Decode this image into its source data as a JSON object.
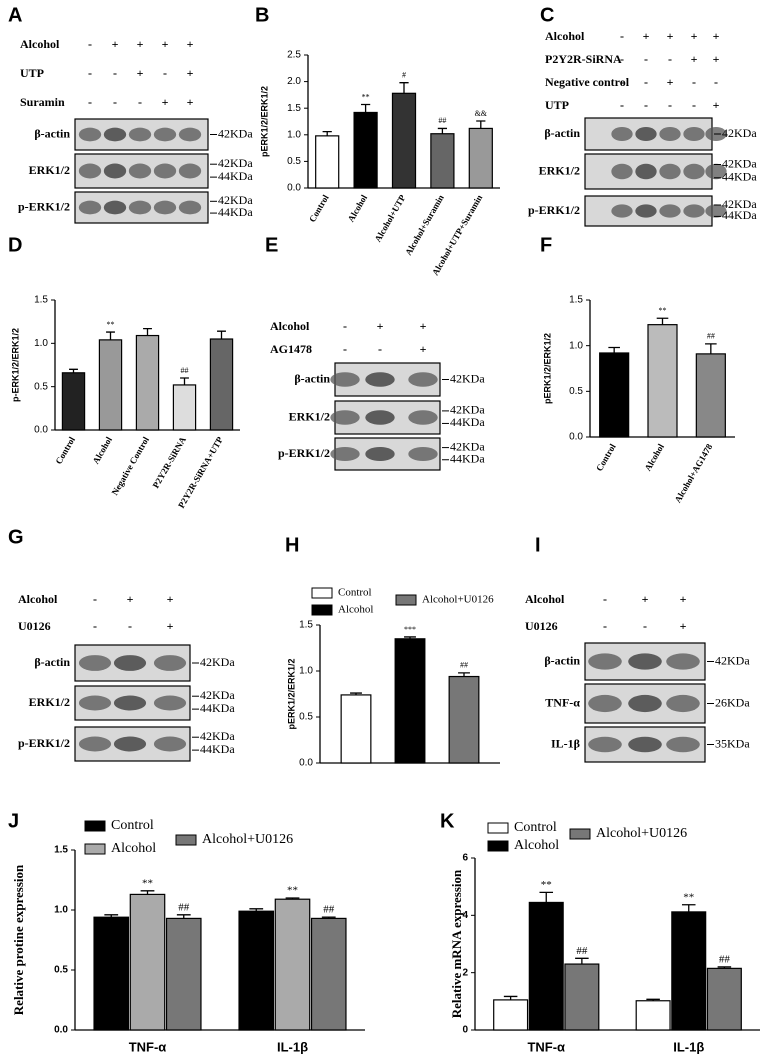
{
  "chart_data": [
    {
      "type": "bar",
      "panel": "B",
      "ylabel": "pERK1/2/ERK1/2",
      "categories": [
        "Control",
        "Alcohol",
        "Alcohol+UTP",
        "Alcohol+Suramin",
        "Alcohol+UTP+Suramin"
      ],
      "values": [
        0.98,
        1.42,
        1.78,
        1.02,
        1.12
      ],
      "errors": [
        0.08,
        0.15,
        0.2,
        0.1,
        0.14
      ],
      "annotations": [
        null,
        "**",
        "#",
        "##",
        "&&"
      ],
      "colors": [
        "#ffffff",
        "#000000",
        "#333333",
        "#666666",
        "#999999"
      ],
      "ylim": [
        0,
        2.5
      ],
      "yticks": [
        {
          "value": 0,
          "label": "0.0"
        },
        0.5,
        {
          "value": 1,
          "label": "1.0"
        },
        1.5,
        {
          "value": 2,
          "label": "2.0"
        },
        2.5
      ]
    },
    {
      "type": "bar",
      "panel": "D",
      "ylabel": "p-ERK1/2/ERK1/2",
      "categories": [
        "Control",
        "Alcohol",
        "Negative Control",
        "P2Y2R-SiRNA",
        "P2Y2R-SiRNA+UTP"
      ],
      "values": [
        0.66,
        1.04,
        1.09,
        0.52,
        1.05
      ],
      "errors": [
        0.04,
        0.09,
        0.08,
        0.08,
        0.09
      ],
      "annotations": [
        null,
        "**",
        null,
        "##",
        null
      ],
      "colors": [
        "#222222",
        "#999999",
        "#aaaaaa",
        "#dddddd",
        "#666666"
      ],
      "ylim": [
        0,
        1.5
      ],
      "yticks": [
        {
          "value": 0,
          "label": "0.0"
        },
        0.5,
        {
          "value": 1,
          "label": "1.0"
        },
        1.5
      ]
    },
    {
      "type": "bar",
      "panel": "F",
      "ylabel": "pERK1/2/ERK1/2",
      "categories": [
        "Control",
        "Alcohol",
        "Alcohol+AG1478"
      ],
      "values": [
        0.92,
        1.23,
        0.91
      ],
      "errors": [
        0.06,
        0.07,
        0.11
      ],
      "annotations": [
        null,
        "**",
        "##"
      ],
      "colors": [
        "#000000",
        "#bbbbbb",
        "#888888"
      ],
      "ylim": [
        0,
        1.5
      ],
      "yticks": [
        {
          "value": 0,
          "label": "0.0"
        },
        0.5,
        {
          "value": 1,
          "label": "1.0"
        },
        1.5
      ]
    },
    {
      "type": "bar",
      "panel": "H",
      "ylabel": "pERK1/2/ERK1/2",
      "categories": [
        null
      ],
      "series": [
        {
          "name": "Control",
          "color": "#ffffff",
          "values": [
            0.74
          ],
          "errors": [
            0.02
          ],
          "annotations": [
            null
          ]
        },
        {
          "name": "Alcohol",
          "color": "#000000",
          "values": [
            1.35
          ],
          "errors": [
            0.02
          ],
          "annotations": [
            "***"
          ]
        },
        {
          "name": "Alcohol+U0126",
          "color": "#777777",
          "values": [
            0.94
          ],
          "errors": [
            0.04
          ],
          "annotations": [
            "##"
          ]
        }
      ],
      "ylim": [
        0,
        1.5
      ],
      "yticks": [
        {
          "value": 0,
          "label": "0.0"
        },
        0.5,
        {
          "value": 1,
          "label": "1.0"
        },
        1.5
      ]
    },
    {
      "type": "bar",
      "panel": "J",
      "ylabel": "Relative protine expression",
      "categories": [
        "TNF-α",
        "IL-1β"
      ],
      "series": [
        {
          "name": "Control",
          "color": "#000000",
          "values": [
            0.94,
            0.99
          ],
          "errors": [
            0.02,
            0.02
          ],
          "annotations": [
            null,
            null
          ]
        },
        {
          "name": "Alcohol",
          "color": "#aaaaaa",
          "values": [
            1.13,
            1.09
          ],
          "errors": [
            0.03,
            0.01
          ],
          "annotations": [
            "**",
            "**"
          ]
        },
        {
          "name": "Alcohol+U0126",
          "color": "#777777",
          "values": [
            0.93,
            0.93
          ],
          "errors": [
            0.03,
            0.01
          ],
          "annotations": [
            "##",
            "##"
          ]
        }
      ],
      "ylim": [
        0,
        1.5
      ],
      "yticks": [
        {
          "value": 0,
          "label": "0.0"
        },
        0.5,
        {
          "value": 1,
          "label": "1.0"
        },
        1.5
      ]
    },
    {
      "type": "bar",
      "panel": "K",
      "ylabel": "Relative mRNA expression",
      "categories": [
        "TNF-α",
        "IL-1β"
      ],
      "series": [
        {
          "name": "Control",
          "color": "#ffffff",
          "values": [
            1.05,
            1.02
          ],
          "errors": [
            0.12,
            0.05
          ],
          "annotations": [
            null,
            null
          ]
        },
        {
          "name": "Alcohol",
          "color": "#000000",
          "values": [
            4.45,
            4.12
          ],
          "errors": [
            0.35,
            0.25
          ],
          "annotations": [
            "**",
            "**"
          ]
        },
        {
          "name": "Alcohol+U0126",
          "color": "#777777",
          "values": [
            2.3,
            2.15
          ],
          "errors": [
            0.2,
            0.05
          ],
          "annotations": [
            "##",
            "##"
          ]
        }
      ],
      "ylim": [
        0,
        6
      ],
      "yticks": [
        0,
        2,
        4,
        6
      ]
    }
  ],
  "blots": [
    {
      "panel": "A",
      "conditions": [
        {
          "label": "Alcohol",
          "signs": [
            "-",
            "+",
            "+",
            "+",
            "+"
          ]
        },
        {
          "label": "UTP",
          "signs": [
            "-",
            "-",
            "+",
            "-",
            "+"
          ]
        },
        {
          "label": "Suramin",
          "signs": [
            "-",
            "-",
            "-",
            "+",
            "+"
          ]
        }
      ],
      "bands": [
        {
          "label": "β-actin",
          "markers": [
            "42KDa"
          ]
        },
        {
          "label": "ERK1/2",
          "markers": [
            "42KDa",
            "44KDa"
          ]
        },
        {
          "label": "p-ERK1/2",
          "markers": [
            "42KDa",
            "44KDa"
          ]
        }
      ]
    },
    {
      "panel": "C",
      "conditions": [
        {
          "label": "Alcohol",
          "signs": [
            "-",
            "+",
            "+",
            "+",
            "+"
          ]
        },
        {
          "label": "P2Y2R-SiRNA",
          "signs": [
            "-",
            "-",
            "-",
            "+",
            "+"
          ]
        },
        {
          "label": "Negative control",
          "signs": [
            "-",
            "-",
            "+",
            "-",
            "-"
          ]
        },
        {
          "label": "UTP",
          "signs": [
            "-",
            "-",
            "-",
            "-",
            "+"
          ]
        }
      ],
      "bands": [
        {
          "label": "β-actin",
          "markers": [
            "42KDa"
          ]
        },
        {
          "label": "ERK1/2",
          "markers": [
            "42KDa",
            "44KDa"
          ]
        },
        {
          "label": "p-ERK1/2",
          "markers": [
            "42KDa",
            "44KDa"
          ]
        }
      ]
    },
    {
      "panel": "E",
      "conditions": [
        {
          "label": "Alcohol",
          "signs": [
            "-",
            "+",
            "+"
          ]
        },
        {
          "label": "AG1478",
          "signs": [
            "-",
            "-",
            "+"
          ]
        }
      ],
      "bands": [
        {
          "label": "β-actin",
          "markers": [
            "42KDa"
          ]
        },
        {
          "label": "ERK1/2",
          "markers": [
            "42KDa",
            "44KDa"
          ]
        },
        {
          "label": "p-ERK1/2",
          "markers": [
            "42KDa",
            "44KDa"
          ]
        }
      ]
    },
    {
      "panel": "G",
      "conditions": [
        {
          "label": "Alcohol",
          "signs": [
            "-",
            "+",
            "+"
          ]
        },
        {
          "label": "U0126",
          "signs": [
            "-",
            "-",
            "+"
          ]
        }
      ],
      "bands": [
        {
          "label": "β-actin",
          "markers": [
            "42KDa"
          ]
        },
        {
          "label": "ERK1/2",
          "markers": [
            "42KDa",
            "44KDa"
          ]
        },
        {
          "label": "p-ERK1/2",
          "markers": [
            "42KDa",
            "44KDa"
          ]
        }
      ]
    },
    {
      "panel": "I",
      "conditions": [
        {
          "label": "Alcohol",
          "signs": [
            "-",
            "+",
            "+"
          ]
        },
        {
          "label": "U0126",
          "signs": [
            "-",
            "-",
            "+"
          ]
        }
      ],
      "bands": [
        {
          "label": "β-actin",
          "markers": [
            "42KDa"
          ]
        },
        {
          "label": "TNF-α",
          "markers": [
            "26KDa"
          ]
        },
        {
          "label": "IL-1β",
          "markers": [
            "35KDa"
          ]
        }
      ]
    }
  ]
}
